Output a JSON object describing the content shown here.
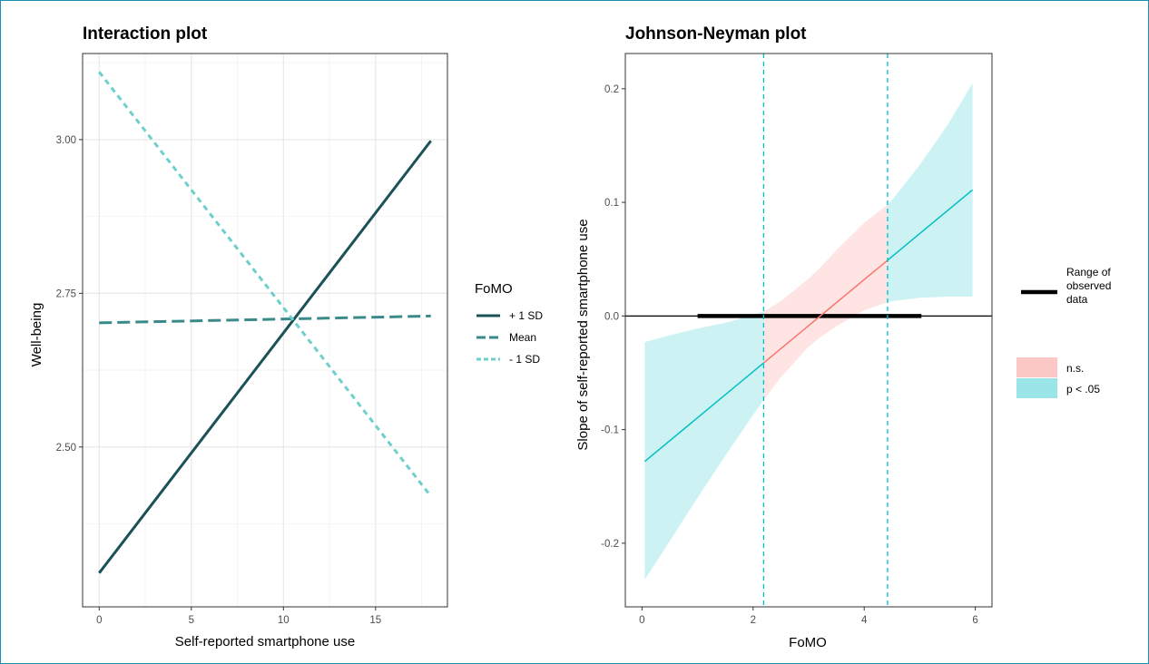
{
  "chart_data": [
    {
      "type": "line",
      "title": "Interaction plot",
      "xlabel": "Self-reported smartphone use",
      "ylabel": "Well-being",
      "xlim": [
        -0.9,
        18.9
      ],
      "ylim": [
        2.24,
        3.14
      ],
      "xticks": [
        0,
        5,
        10,
        15
      ],
      "xtick_labels": [
        "0",
        "5",
        "10",
        "15"
      ],
      "yticks": [
        2.5,
        2.75,
        3.0
      ],
      "ytick_labels": [
        "2.50",
        "2.75",
        "3.00"
      ],
      "grid": true,
      "legend": {
        "title": "FoMO",
        "position": "right",
        "entries": [
          "+ 1 SD",
          "Mean",
          "- 1 SD"
        ]
      },
      "series": [
        {
          "name": "+ 1 SD",
          "x": [
            0,
            18
          ],
          "y": [
            2.295,
            2.998
          ],
          "color": "#1a5256",
          "dash": "solid"
        },
        {
          "name": "Mean",
          "x": [
            0,
            18
          ],
          "y": [
            2.702,
            2.713
          ],
          "color": "#3b8a8a",
          "dash": "long-dash"
        },
        {
          "name": "- 1 SD",
          "x": [
            0,
            18
          ],
          "y": [
            3.11,
            2.42
          ],
          "color": "#6ecfcc",
          "dash": "short-dash"
        }
      ]
    },
    {
      "type": "line",
      "title": "Johnson-Neyman plot",
      "xlabel": "FoMO",
      "ylabel": "Slope of self-reported smartphone use",
      "xlim": [
        -0.3,
        6.3
      ],
      "ylim": [
        -0.256,
        0.231
      ],
      "xticks": [
        0,
        2,
        4,
        6
      ],
      "xtick_labels": [
        "0",
        "2",
        "4",
        "6"
      ],
      "yticks": [
        -0.2,
        -0.1,
        0.0,
        0.1,
        0.2
      ],
      "ytick_labels": [
        "-0.2",
        "-0.1",
        "0.0",
        "0.1",
        "0.2"
      ],
      "grid": false,
      "hline_y": 0,
      "jn_bounds": [
        2.19,
        4.42
      ],
      "observed_range": [
        1.0,
        5.03
      ],
      "colors": {
        "ns": "#f8766d",
        "sig": "#00bfc4"
      },
      "slope_line": {
        "x": [
          0.05,
          5.95
        ],
        "y": [
          -0.128,
          0.111
        ]
      },
      "ci_band": {
        "x": [
          0.05,
          0.5,
          1.0,
          1.5,
          2.0,
          2.19,
          2.5,
          3.0,
          3.2,
          3.5,
          4.0,
          4.42,
          4.5,
          5.0,
          5.5,
          5.95
        ],
        "lower": [
          -0.232,
          -0.198,
          -0.16,
          -0.123,
          -0.087,
          -0.074,
          -0.054,
          -0.027,
          -0.019,
          -0.009,
          0.005,
          0.012,
          0.013,
          0.016,
          0.017,
          0.017
        ],
        "upper": [
          -0.023,
          -0.017,
          -0.011,
          -0.006,
          0.001,
          0.004,
          0.013,
          0.033,
          0.042,
          0.058,
          0.082,
          0.098,
          0.102,
          0.133,
          0.168,
          0.205
        ]
      },
      "legend": {
        "position": "right",
        "range_label_lines": [
          "Range of",
          "observed",
          "data"
        ],
        "fill_entries": [
          "n.s.",
          "p < .05"
        ]
      }
    }
  ]
}
